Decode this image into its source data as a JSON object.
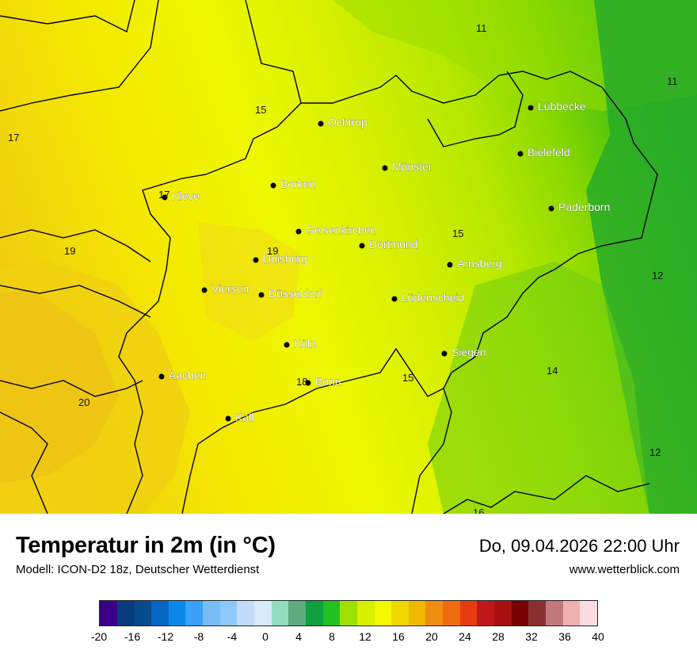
{
  "title": "Temperatur in 2m (in °C)",
  "model": "Modell: ICON-D2 18z, Deutscher Wetterdienst",
  "datetime": "Do, 09.04.2026 22:00 Uhr",
  "website": "www.wetterblick.com",
  "cities": [
    {
      "name": "Lübbecke"
    },
    {
      "name": "Ochtrup"
    },
    {
      "name": "Bielefeld"
    },
    {
      "name": "Münster"
    },
    {
      "name": "Kleve"
    },
    {
      "name": "Borken"
    },
    {
      "name": "Paderborn"
    },
    {
      "name": "Gelsenkirchen"
    },
    {
      "name": "Dortmund"
    },
    {
      "name": "Duisburg"
    },
    {
      "name": "Arnsberg"
    },
    {
      "name": "Viersen"
    },
    {
      "name": "Düsseldorf"
    },
    {
      "name": "Lüdenscheid"
    },
    {
      "name": "Köln"
    },
    {
      "name": "Siegen"
    },
    {
      "name": "Aachen"
    },
    {
      "name": "Bonn"
    },
    {
      "name": "Kall"
    }
  ],
  "values": [
    "11",
    "11",
    "15",
    "17",
    "17",
    "19",
    "19",
    "15",
    "12",
    "14",
    "15",
    "18",
    "20",
    "12",
    "16"
  ],
  "legend": {
    "colors": [
      "#3b0088",
      "#0a3a7e",
      "#064a8c",
      "#0666c0",
      "#0a88e8",
      "#3aa0f8",
      "#78bcf8",
      "#8ec8fa",
      "#c0dcfa",
      "#d8eafc",
      "#92dcc0",
      "#60aa80",
      "#10a040",
      "#22c020",
      "#9ee000",
      "#d8f000",
      "#f4f800",
      "#f0d800",
      "#f0b800",
      "#f08c10",
      "#f06c10",
      "#e83c10",
      "#c01818",
      "#a81010",
      "#780000",
      "#883030",
      "#c07878",
      "#f0b0b0",
      "#fcdce0"
    ],
    "ticks": [
      "-20",
      "-16",
      "-12",
      "-8",
      "-4",
      "0",
      "4",
      "8",
      "12",
      "16",
      "20",
      "24",
      "28",
      "32",
      "36",
      "40"
    ]
  }
}
